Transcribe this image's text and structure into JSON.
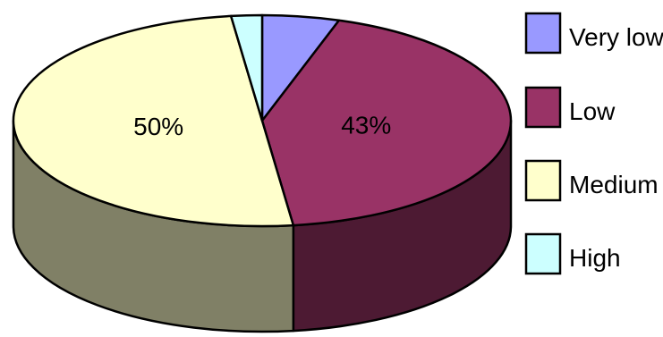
{
  "chart_data": {
    "type": "pie",
    "style": "3d",
    "categories": [
      "Very low",
      "Low",
      "Medium",
      "High"
    ],
    "values": [
      5,
      43,
      50,
      2
    ],
    "data_labels": [
      "",
      "43%",
      "50%",
      ""
    ],
    "colors": [
      "#9999FF",
      "#993366",
      "#FFFFCC",
      "#CCFFFF"
    ],
    "side_colors": [
      "#4D4D80",
      "#4D1A33",
      "#808066",
      "#668080"
    ],
    "legend": {
      "position": "right",
      "entries": [
        "Very low",
        "Low",
        "Medium",
        "High"
      ]
    },
    "title": "",
    "xlabel": "",
    "ylabel": ""
  }
}
